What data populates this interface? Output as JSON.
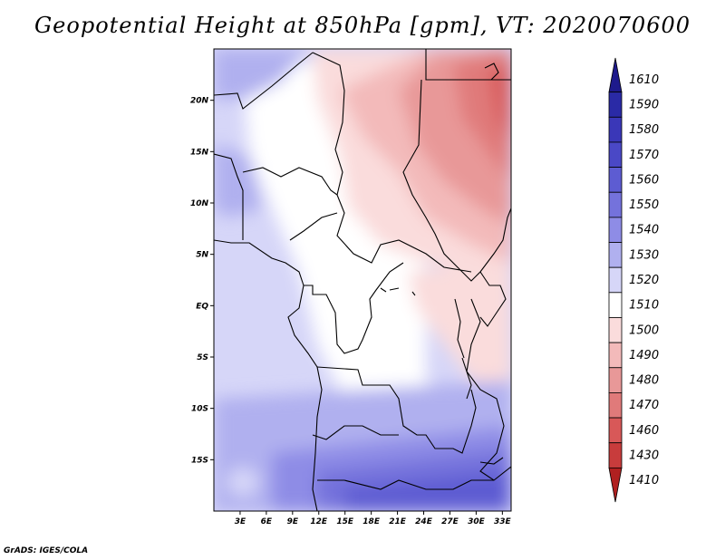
{
  "title": "Geopotential Height at 850hPa [gpm], VT: 2020070600",
  "footer": "GrADS: IGES/COLA",
  "map": {
    "lon_range": [
      0,
      34
    ],
    "lat_range": [
      -20,
      25
    ],
    "lat_ticks": [
      {
        "value": 20,
        "label": "20N"
      },
      {
        "value": 15,
        "label": "15N"
      },
      {
        "value": 10,
        "label": "10N"
      },
      {
        "value": 5,
        "label": "5N"
      },
      {
        "value": 0,
        "label": "EQ"
      },
      {
        "value": -5,
        "label": "5S"
      },
      {
        "value": -10,
        "label": "10S"
      },
      {
        "value": -15,
        "label": "15S"
      }
    ],
    "lon_ticks": [
      {
        "value": 3,
        "label": "3E"
      },
      {
        "value": 6,
        "label": "6E"
      },
      {
        "value": 9,
        "label": "9E"
      },
      {
        "value": 12,
        "label": "12E"
      },
      {
        "value": 15,
        "label": "15E"
      },
      {
        "value": 18,
        "label": "18E"
      },
      {
        "value": 21,
        "label": "21E"
      },
      {
        "value": 24,
        "label": "24E"
      },
      {
        "value": 27,
        "label": "27E"
      },
      {
        "value": 30,
        "label": "30E"
      },
      {
        "value": 33,
        "label": "33E"
      }
    ]
  },
  "colorbar": {
    "levels": [
      {
        "label": "1610",
        "color": "#1e1a8c"
      },
      {
        "label": "1590",
        "color": "#2a2aa6"
      },
      {
        "label": "1580",
        "color": "#3a37b8"
      },
      {
        "label": "1570",
        "color": "#4a48c6"
      },
      {
        "label": "1560",
        "color": "#5d5cd2"
      },
      {
        "label": "1550",
        "color": "#7472dc"
      },
      {
        "label": "1540",
        "color": "#8e8ce6"
      },
      {
        "label": "1530",
        "color": "#b0b0ef"
      },
      {
        "label": "1520",
        "color": "#d6d6f8"
      },
      {
        "label": "1510",
        "color": "#ffffff"
      },
      {
        "label": "1500",
        "color": "#fadcdc"
      },
      {
        "label": "1490",
        "color": "#f3baba"
      },
      {
        "label": "1480",
        "color": "#e89898"
      },
      {
        "label": "1470",
        "color": "#e07a7a"
      },
      {
        "label": "1460",
        "color": "#d85858"
      },
      {
        "label": "1430",
        "color": "#c83c3c"
      },
      {
        "label": "1410",
        "color": "#b02020"
      }
    ]
  }
}
